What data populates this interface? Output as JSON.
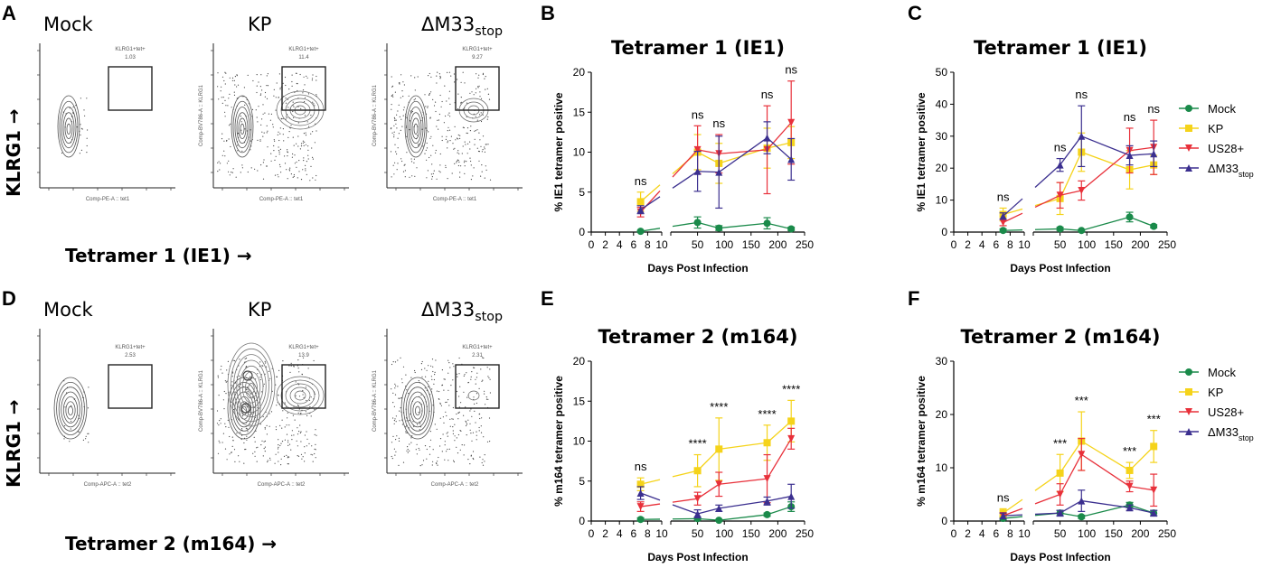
{
  "panels": {
    "A": "A",
    "B": "B",
    "C": "C",
    "D": "D",
    "E": "E",
    "F": "F"
  },
  "flow": {
    "top": {
      "plots": [
        {
          "label": "Mock",
          "gate_title": "KLRG1+tet+",
          "gate_value": "1.03",
          "y_param": "",
          "x_param": "Comp-PE-A :: tet1"
        },
        {
          "label": "KP",
          "gate_title": "KLRG1+tet+",
          "gate_value": "11.4",
          "y_param": "Comp-BV786-A :: KLRG1",
          "x_param": "Comp-PE-A :: tet1"
        },
        {
          "label": "ΔM33",
          "label_sub": "stop",
          "gate_title": "KLRG1+tet+",
          "gate_value": "9.27",
          "y_param": "Comp-BV786-A :: KLRG1",
          "x_param": "Comp-PE-A :: tet1"
        }
      ],
      "y_axis": "KLRG1 →",
      "x_axis": "Tetramer 1 (IE1) →"
    },
    "bottom": {
      "plots": [
        {
          "label": "Mock",
          "gate_title": "KLRG1+tet+",
          "gate_value": "2.53",
          "y_param": "",
          "x_param": "Comp-APC-A :: tet2"
        },
        {
          "label": "KP",
          "gate_title": "KLRG1+tet+",
          "gate_value": "13.9",
          "y_param": "Comp-BV786-A :: KLRG1",
          "x_param": "Comp-APC-A :: tet2"
        },
        {
          "label": "ΔM33",
          "label_sub": "stop",
          "gate_title": "KLRG1+tet+",
          "gate_value": "2.31",
          "y_param": "Comp-BV786-A :: KLRG1",
          "x_param": "Comp-APC-A :: tet2"
        }
      ],
      "y_axis": "KLRG1 →",
      "x_axis": "Tetramer 2 (m164) →"
    }
  },
  "legend": {
    "items": [
      {
        "name": "Mock",
        "color": "#1a8a4a",
        "marker": "circle"
      },
      {
        "name": "KP",
        "color": "#f5d31a",
        "marker": "square"
      },
      {
        "name": "US28+",
        "color": "#e8303a",
        "marker": "triangle-down"
      },
      {
        "name": "ΔM33",
        "sub": "stop",
        "color": "#3b2f8f",
        "marker": "triangle-up"
      }
    ]
  },
  "chart_data": [
    {
      "panel": "B",
      "type": "line",
      "title": "Tetramer 1 (IE1)",
      "xlabel": "Days Post Infection",
      "ylabel": "% IE1 tetramer positive",
      "ylim": [
        0,
        20
      ],
      "yticks": [
        "0",
        "5",
        "10",
        "15",
        "20"
      ],
      "xticks_left": [
        "0",
        "2",
        "4",
        "6",
        "8",
        "10"
      ],
      "xticks_right": [
        "50",
        "100",
        "150",
        "200",
        "250"
      ],
      "x": [
        7,
        50,
        90,
        180,
        225
      ],
      "series": [
        {
          "name": "Mock",
          "values": [
            0.1,
            1.2,
            0.5,
            1.1,
            0.4
          ],
          "err": [
            0.1,
            0.7,
            0.3,
            0.7,
            0.2
          ]
        },
        {
          "name": "KP",
          "values": [
            3.8,
            10.0,
            8.6,
            10.5,
            11.2
          ],
          "err": [
            1.2,
            2.2,
            2.5,
            2.5,
            2.0
          ]
        },
        {
          "name": "US28+",
          "values": [
            2.5,
            10.3,
            9.8,
            10.3,
            13.7
          ],
          "err": [
            0.6,
            3.0,
            2.4,
            5.5,
            5.2
          ]
        },
        {
          "name": "ΔM33stop",
          "values": [
            2.8,
            7.6,
            7.5,
            11.8,
            9.1
          ],
          "err": [
            0.5,
            2.5,
            4.5,
            2.0,
            2.6
          ]
        }
      ],
      "significance": [
        "ns",
        "ns",
        "ns",
        "ns",
        "ns"
      ]
    },
    {
      "panel": "C",
      "type": "line",
      "title": "Tetramer 1 (IE1)",
      "xlabel": "Days Post Infection",
      "ylabel": "% IE1 tetramer positive",
      "ylim": [
        0,
        50
      ],
      "yticks": [
        "0",
        "10",
        "20",
        "30",
        "40",
        "50"
      ],
      "xticks_left": [
        "0",
        "2",
        "4",
        "6",
        "8",
        "10"
      ],
      "xticks_right": [
        "50",
        "100",
        "150",
        "200",
        "250"
      ],
      "x": [
        7,
        50,
        90,
        180,
        225
      ],
      "series": [
        {
          "name": "Mock",
          "values": [
            0.5,
            1.0,
            0.5,
            4.7,
            1.8
          ],
          "err": [
            0.5,
            0.5,
            0.3,
            1.5,
            0.5
          ]
        },
        {
          "name": "KP",
          "values": [
            5.5,
            10.5,
            25.0,
            19.5,
            21.0
          ],
          "err": [
            2.0,
            5.0,
            6.0,
            6.0,
            3.0
          ]
        },
        {
          "name": "US28+",
          "values": [
            3.0,
            11.5,
            13.0,
            25.5,
            26.5
          ],
          "err": [
            1.0,
            4.0,
            3.0,
            7.0,
            8.5
          ]
        },
        {
          "name": "ΔM33stop",
          "values": [
            5.0,
            21.0,
            30.0,
            24.0,
            24.5
          ],
          "err": [
            1.0,
            2.0,
            9.5,
            3.0,
            4.0
          ]
        }
      ],
      "significance": [
        "ns",
        "ns",
        "ns",
        "ns",
        "ns"
      ]
    },
    {
      "panel": "E",
      "type": "line",
      "title": "Tetramer 2 (m164)",
      "xlabel": "Days Post Infection",
      "ylabel": "% m164 tetramer positive",
      "ylim": [
        0,
        20
      ],
      "yticks": [
        "0",
        "5",
        "10",
        "15",
        "20"
      ],
      "xticks_left": [
        "0",
        "2",
        "4",
        "6",
        "8",
        "10"
      ],
      "xticks_right": [
        "50",
        "100",
        "150",
        "200",
        "250"
      ],
      "x": [
        7,
        50,
        90,
        180,
        225
      ],
      "series": [
        {
          "name": "Mock",
          "values": [
            0.2,
            0.3,
            0.1,
            0.8,
            1.8
          ],
          "err": [
            0.2,
            0.2,
            0.1,
            0.2,
            0.6
          ]
        },
        {
          "name": "KP",
          "values": [
            4.6,
            6.3,
            9.0,
            9.8,
            12.5
          ],
          "err": [
            0.8,
            2.0,
            3.9,
            2.2,
            2.6
          ]
        },
        {
          "name": "US28+",
          "values": [
            1.8,
            2.8,
            4.6,
            5.3,
            10.3
          ],
          "err": [
            0.6,
            0.8,
            1.5,
            3.0,
            1.3
          ]
        },
        {
          "name": "ΔM33stop",
          "values": [
            3.5,
            0.9,
            1.6,
            2.5,
            3.1
          ],
          "err": [
            0.8,
            0.5,
            0.4,
            0.5,
            1.5
          ]
        }
      ],
      "significance": [
        "ns",
        "****",
        "****",
        "****",
        "****"
      ]
    },
    {
      "panel": "F",
      "type": "line",
      "title": "Tetramer 2 (m164)",
      "xlabel": "Days Post Infection",
      "ylabel": "% m164 tetramer positive",
      "ylim": [
        0,
        30
      ],
      "yticks": [
        "0",
        "10",
        "20",
        "30"
      ],
      "xticks_left": [
        "0",
        "2",
        "4",
        "6",
        "8",
        "10"
      ],
      "xticks_right": [
        "50",
        "100",
        "150",
        "200",
        "250"
      ],
      "x": [
        7,
        50,
        90,
        180,
        225
      ],
      "series": [
        {
          "name": "Mock",
          "values": [
            0.5,
            1.5,
            0.8,
            3.0,
            1.5
          ],
          "err": [
            0.3,
            0.5,
            0.3,
            0.5,
            0.5
          ]
        },
        {
          "name": "KP",
          "values": [
            1.5,
            9.0,
            15.0,
            9.5,
            14.0
          ],
          "err": [
            0.8,
            3.5,
            5.5,
            1.5,
            3.0
          ]
        },
        {
          "name": "US28+",
          "values": [
            1.0,
            5.0,
            12.5,
            6.5,
            5.8
          ],
          "err": [
            0.5,
            2.0,
            3.0,
            1.0,
            3.0
          ]
        },
        {
          "name": "ΔM33stop",
          "values": [
            1.0,
            1.5,
            3.8,
            2.5,
            1.5
          ],
          "err": [
            0.5,
            0.5,
            2.0,
            0.5,
            0.5
          ]
        }
      ],
      "significance": [
        "ns",
        "***",
        "***",
        "***",
        "***"
      ]
    }
  ]
}
